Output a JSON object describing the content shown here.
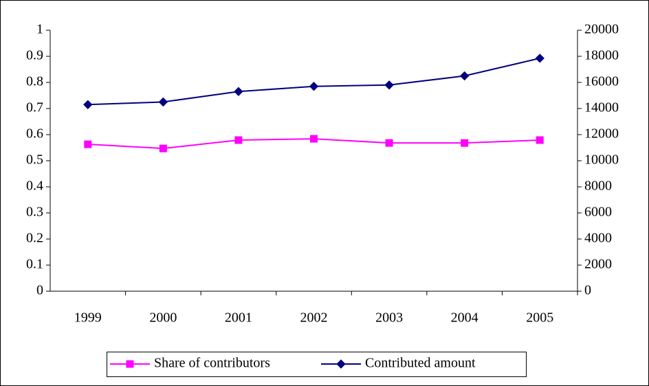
{
  "chart_data": {
    "type": "line",
    "categories": [
      "1999",
      "2000",
      "2001",
      "2002",
      "2003",
      "2004",
      "2005"
    ],
    "series": [
      {
        "name": "Share of contributors",
        "color": "#ff00ff",
        "marker": "square",
        "axis": "y",
        "values": [
          0.563,
          0.547,
          0.579,
          0.584,
          0.568,
          0.568,
          0.579
        ]
      },
      {
        "name": "Contributed amount",
        "color": "#000080",
        "marker": "diamond",
        "axis": "y2",
        "values": [
          14300,
          14500,
          15300,
          15700,
          15800,
          16500,
          17850
        ]
      }
    ],
    "ylim": [
      0,
      1
    ],
    "yticks": [
      0,
      0.1,
      0.2,
      0.3,
      0.4,
      0.5,
      0.6,
      0.7,
      0.8,
      0.9,
      1
    ],
    "y2lim": [
      0,
      20000
    ],
    "y2ticks": [
      0,
      2000,
      4000,
      6000,
      8000,
      10000,
      12000,
      14000,
      16000,
      18000,
      20000
    ],
    "grid": false,
    "legend": "bottom"
  }
}
